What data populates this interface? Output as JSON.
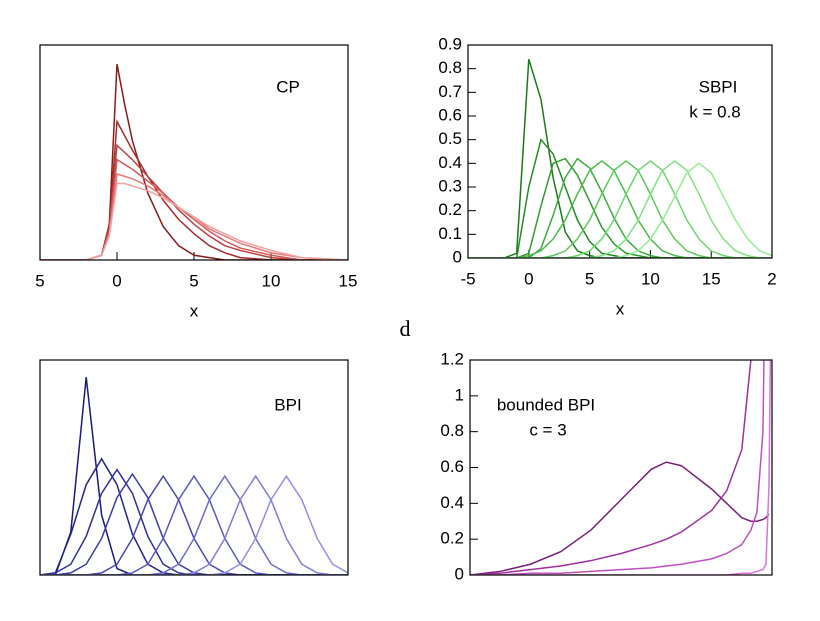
{
  "chart_data": [
    {
      "type": "line",
      "annotations": [
        "CP"
      ],
      "x_label": "x",
      "xlim": [
        -5,
        15
      ],
      "xticks": [
        {
          "value": -5,
          "label": "5"
        },
        0,
        5,
        10,
        15
      ],
      "ylim": [
        0,
        0.9
      ],
      "x": [
        -5,
        -2,
        -1,
        -0.5,
        0,
        0.5,
        1,
        2,
        3,
        4,
        5,
        6,
        7,
        8,
        10,
        12,
        15
      ],
      "series": [
        {
          "color": "#8b1a1a",
          "values": [
            0,
            0,
            0.02,
            0.15,
            0.82,
            0.65,
            0.5,
            0.28,
            0.14,
            0.06,
            0.02,
            0.01,
            0,
            0,
            0,
            0,
            0
          ]
        },
        {
          "color": "#a52a2a",
          "values": [
            0,
            0,
            0.02,
            0.14,
            0.58,
            0.52,
            0.46,
            0.35,
            0.25,
            0.17,
            0.11,
            0.06,
            0.03,
            0.01,
            0,
            0,
            0
          ]
        },
        {
          "color": "#bf4040",
          "values": [
            0,
            0,
            0.02,
            0.13,
            0.48,
            0.45,
            0.42,
            0.35,
            0.28,
            0.21,
            0.15,
            0.1,
            0.06,
            0.04,
            0.01,
            0,
            0
          ]
        },
        {
          "color": "#d45a5a",
          "values": [
            0,
            0,
            0.02,
            0.12,
            0.42,
            0.4,
            0.38,
            0.33,
            0.28,
            0.22,
            0.17,
            0.12,
            0.08,
            0.05,
            0.02,
            0,
            0
          ]
        },
        {
          "color": "#e67a7a",
          "values": [
            0,
            0,
            0.02,
            0.11,
            0.36,
            0.35,
            0.34,
            0.31,
            0.27,
            0.22,
            0.18,
            0.13,
            0.1,
            0.07,
            0.03,
            0.01,
            0
          ]
        },
        {
          "color": "#f4a0a0",
          "values": [
            0,
            0,
            0.02,
            0.1,
            0.32,
            0.32,
            0.31,
            0.29,
            0.26,
            0.22,
            0.18,
            0.14,
            0.11,
            0.08,
            0.04,
            0.01,
            0
          ]
        }
      ]
    },
    {
      "type": "line",
      "annotations": [
        "SBPI",
        "k = 0.8"
      ],
      "x_label": "x",
      "xlim": [
        -5,
        20
      ],
      "xticks": [
        -5,
        0,
        5,
        10,
        15,
        {
          "value": 20,
          "label": "2"
        }
      ],
      "ylim": [
        0,
        0.9
      ],
      "yticks": [
        0,
        0.1,
        0.2,
        0.3,
        0.4,
        0.5,
        0.6,
        0.7,
        0.8,
        0.9
      ],
      "x": [
        -5,
        -2,
        -1,
        0,
        1,
        2,
        3,
        4,
        5,
        6,
        7,
        8,
        9,
        10,
        11,
        12,
        13,
        14,
        15,
        16,
        17,
        18,
        19,
        20
      ],
      "series": [
        {
          "color": "#1a7a1a",
          "values": [
            0,
            0,
            0.02,
            0.84,
            0.67,
            0.34,
            0.11,
            0.03,
            0.01,
            0,
            0,
            0,
            0,
            0,
            0,
            0,
            0,
            0,
            0,
            0,
            0,
            0,
            0,
            0
          ]
        },
        {
          "color": "#238b23",
          "values": [
            0,
            0,
            0,
            0.3,
            0.5,
            0.44,
            0.3,
            0.16,
            0.07,
            0.02,
            0.01,
            0,
            0,
            0,
            0,
            0,
            0,
            0,
            0,
            0,
            0,
            0,
            0,
            0
          ]
        },
        {
          "color": "#2e9c2e",
          "values": [
            0,
            0,
            0,
            0.02,
            0.22,
            0.4,
            0.42,
            0.35,
            0.24,
            0.13,
            0.06,
            0.02,
            0.01,
            0,
            0,
            0,
            0,
            0,
            0,
            0,
            0,
            0,
            0,
            0
          ]
        },
        {
          "color": "#3aad3a",
          "values": [
            0,
            0,
            0,
            0,
            0.04,
            0.18,
            0.34,
            0.42,
            0.38,
            0.28,
            0.17,
            0.08,
            0.03,
            0.01,
            0,
            0,
            0,
            0,
            0,
            0,
            0,
            0,
            0,
            0
          ]
        },
        {
          "color": "#48bd48",
          "values": [
            0,
            0,
            0,
            0.01,
            0.03,
            0.08,
            0.16,
            0.27,
            0.37,
            0.41,
            0.37,
            0.27,
            0.16,
            0.08,
            0.03,
            0.01,
            0,
            0,
            0,
            0,
            0,
            0,
            0,
            0
          ]
        },
        {
          "color": "#58cc58",
          "values": [
            0,
            0,
            0,
            0,
            0,
            0.01,
            0.03,
            0.08,
            0.16,
            0.27,
            0.37,
            0.41,
            0.37,
            0.27,
            0.16,
            0.08,
            0.03,
            0.01,
            0,
            0,
            0,
            0,
            0,
            0
          ]
        },
        {
          "color": "#6ad86a",
          "values": [
            0,
            0,
            0,
            0,
            0,
            0,
            0,
            0.01,
            0.03,
            0.08,
            0.16,
            0.27,
            0.37,
            0.41,
            0.37,
            0.27,
            0.16,
            0.08,
            0.03,
            0.01,
            0,
            0,
            0,
            0
          ]
        },
        {
          "color": "#7ee37e",
          "values": [
            0,
            0,
            0,
            0,
            0,
            0,
            0,
            0,
            0,
            0.01,
            0.03,
            0.08,
            0.16,
            0.27,
            0.37,
            0.41,
            0.37,
            0.27,
            0.16,
            0.08,
            0.03,
            0.01,
            0,
            0
          ]
        },
        {
          "color": "#92ee92",
          "values": [
            0,
            0,
            0,
            0,
            0,
            0,
            0,
            0,
            0,
            0,
            0,
            0.01,
            0.03,
            0.08,
            0.16,
            0.26,
            0.36,
            0.4,
            0.36,
            0.26,
            0.16,
            0.08,
            0.03,
            0.01
          ]
        }
      ]
    },
    {
      "type": "line",
      "annotations": [
        "BPI"
      ],
      "xlim": [
        0,
        10
      ],
      "ylim": [
        0,
        1
      ],
      "x": [
        0,
        0.5,
        1,
        1.5,
        2,
        2.5,
        3,
        3.5,
        4,
        4.5,
        5,
        5.5,
        6,
        6.5,
        7,
        7.5,
        8,
        8.5,
        9,
        9.5,
        10
      ],
      "series": [
        {
          "color": "#1a1a80",
          "values": [
            0,
            0,
            0.2,
            0.92,
            0.28,
            0.03,
            0,
            0,
            0,
            0,
            0,
            0,
            0,
            0,
            0,
            0,
            0,
            0,
            0,
            0,
            0
          ]
        },
        {
          "color": "#24248f",
          "values": [
            0,
            0.01,
            0.19,
            0.42,
            0.54,
            0.42,
            0.19,
            0.05,
            0.01,
            0,
            0,
            0,
            0,
            0,
            0,
            0,
            0,
            0,
            0,
            0,
            0
          ]
        },
        {
          "color": "#2e2e9e",
          "values": [
            0,
            0.01,
            0.05,
            0.18,
            0.38,
            0.49,
            0.38,
            0.18,
            0.05,
            0.01,
            0,
            0,
            0,
            0,
            0,
            0,
            0,
            0,
            0,
            0,
            0
          ]
        },
        {
          "color": "#3a3aad",
          "values": [
            0,
            0,
            0.01,
            0.05,
            0.17,
            0.36,
            0.47,
            0.36,
            0.17,
            0.05,
            0.01,
            0,
            0,
            0,
            0,
            0,
            0,
            0,
            0,
            0,
            0
          ]
        },
        {
          "color": "#4848bb",
          "values": [
            0,
            0,
            0,
            0,
            0.01,
            0.05,
            0.17,
            0.35,
            0.46,
            0.35,
            0.17,
            0.05,
            0.01,
            0,
            0,
            0,
            0,
            0,
            0,
            0,
            0
          ]
        },
        {
          "color": "#5858c8",
          "values": [
            0,
            0,
            0,
            0,
            0,
            0,
            0.01,
            0.05,
            0.17,
            0.35,
            0.46,
            0.35,
            0.17,
            0.05,
            0.01,
            0,
            0,
            0,
            0,
            0,
            0
          ]
        },
        {
          "color": "#6a6ad4",
          "values": [
            0,
            0,
            0,
            0,
            0,
            0,
            0,
            0,
            0.01,
            0.05,
            0.17,
            0.35,
            0.46,
            0.35,
            0.17,
            0.05,
            0.01,
            0,
            0,
            0,
            0
          ]
        },
        {
          "color": "#7c7ce0",
          "values": [
            0,
            0,
            0,
            0,
            0,
            0,
            0,
            0,
            0,
            0,
            0.01,
            0.05,
            0.17,
            0.35,
            0.46,
            0.35,
            0.17,
            0.05,
            0.01,
            0,
            0
          ]
        },
        {
          "color": "#8e8eec",
          "values": [
            0,
            0,
            0,
            0,
            0,
            0,
            0,
            0,
            0,
            0,
            0,
            0,
            0.01,
            0.05,
            0.17,
            0.35,
            0.46,
            0.35,
            0.17,
            0.05,
            0.01
          ]
        }
      ]
    },
    {
      "type": "line",
      "annotations": [
        "bounded BPI",
        "c = 3"
      ],
      "xlim": [
        0,
        1
      ],
      "ylim": [
        0,
        1.2
      ],
      "yticks": [
        0,
        0.2,
        0.4,
        0.6,
        0.8,
        1,
        1.2
      ],
      "x": [
        0,
        0.1,
        0.2,
        0.3,
        0.4,
        0.5,
        0.6,
        0.65,
        0.7,
        0.8,
        0.85,
        0.9,
        0.93,
        0.95,
        0.97,
        0.98,
        0.99,
        1
      ],
      "series": [
        {
          "color": "#7b1f7b",
          "values": [
            0,
            0.02,
            0.06,
            0.13,
            0.25,
            0.42,
            0.59,
            0.63,
            0.61,
            0.48,
            0.4,
            0.32,
            0.3,
            0.3,
            0.31,
            0.32,
            0.34,
            null
          ]
        },
        {
          "color": "#a030a0",
          "values": [
            0,
            0.01,
            0.03,
            0.05,
            0.08,
            0.12,
            0.17,
            0.2,
            0.24,
            0.36,
            0.47,
            0.7,
            1.2,
            2,
            null,
            null,
            null,
            null
          ]
        },
        {
          "color": "#c050c0",
          "values": [
            0,
            0,
            0.01,
            0.01,
            0.02,
            0.03,
            0.04,
            0.05,
            0.06,
            0.09,
            0.12,
            0.17,
            0.25,
            0.35,
            0.8,
            2,
            null,
            null
          ]
        },
        {
          "color": "#e070e0",
          "values": [
            0,
            0,
            0,
            0,
            0,
            0,
            0,
            0,
            0,
            0,
            0,
            0.01,
            0.01,
            0.02,
            0.03,
            0.06,
            0.5,
            2
          ]
        }
      ]
    }
  ],
  "figure_label": "d"
}
